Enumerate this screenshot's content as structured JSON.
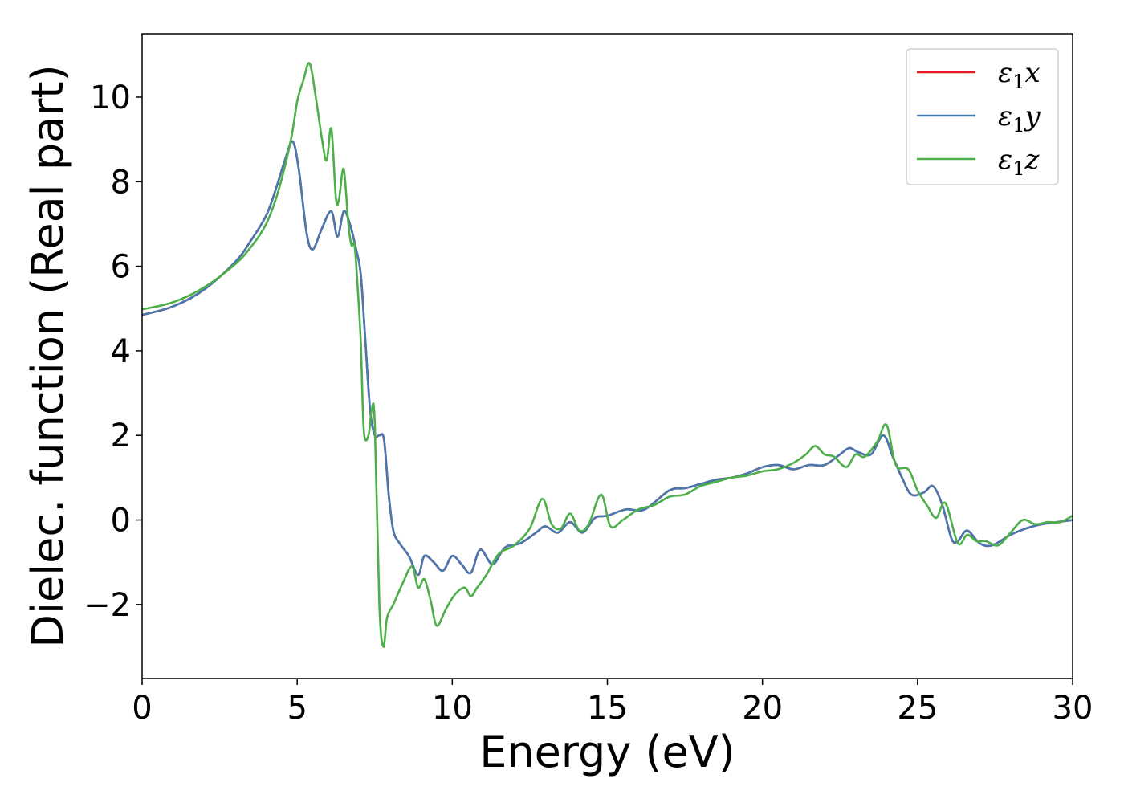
{
  "chart_data": {
    "type": "line",
    "xlabel": "Energy (eV)",
    "ylabel": "Dielec. function (Real part)",
    "xlim": [
      0,
      30
    ],
    "ylim": [
      -3.75,
      11.5
    ],
    "xticks": [
      0,
      5,
      10,
      15,
      20,
      25,
      30
    ],
    "xtick_labels": [
      "0",
      "5",
      "10",
      "15",
      "20",
      "25",
      "30"
    ],
    "yticks": [
      -2,
      0,
      2,
      4,
      6,
      8,
      10
    ],
    "ytick_labels": [
      "−2",
      "0",
      "2",
      "4",
      "6",
      "8",
      "10"
    ],
    "grid": false,
    "legend_position": "top-right",
    "series": [
      {
        "name": "ε1x",
        "legend": {
          "base": "ε",
          "sub": "1",
          "tail": "x"
        },
        "color": "#e41a1c",
        "x": [
          0,
          1,
          2,
          3,
          3.5,
          4,
          4.3,
          4.6,
          4.85,
          5.05,
          5.3,
          5.5,
          5.8,
          6.1,
          6.3,
          6.5,
          6.7,
          6.9,
          7.05,
          7.2,
          7.35,
          7.5,
          7.65,
          7.8,
          7.95,
          8.1,
          8.3,
          8.6,
          8.9,
          9.1,
          9.4,
          9.7,
          10.0,
          10.3,
          10.6,
          10.9,
          11.3,
          11.7,
          12.2,
          12.7,
          13.0,
          13.4,
          13.8,
          14.2,
          14.6,
          15.0,
          15.6,
          16.2,
          17.0,
          17.5,
          18.0,
          18.5,
          19.0,
          19.5,
          20.0,
          20.5,
          21.0,
          21.5,
          22.0,
          22.5,
          22.8,
          23.1,
          23.5,
          23.9,
          24.2,
          24.5,
          24.8,
          25.2,
          25.5,
          25.8,
          26.1,
          26.3,
          26.6,
          27.0,
          27.4,
          28.0,
          28.5,
          29.0,
          29.5,
          30.0
        ],
        "y": [
          4.85,
          5.05,
          5.45,
          6.1,
          6.6,
          7.2,
          7.8,
          8.5,
          8.95,
          8.3,
          6.8,
          6.4,
          6.9,
          7.3,
          6.7,
          7.3,
          7.0,
          6.4,
          5.8,
          4.2,
          2.6,
          2.0,
          2.0,
          1.9,
          0.6,
          -0.25,
          -0.55,
          -0.85,
          -1.3,
          -0.85,
          -1.0,
          -1.2,
          -0.85,
          -1.05,
          -1.25,
          -0.7,
          -1.05,
          -0.65,
          -0.55,
          -0.3,
          -0.15,
          -0.3,
          -0.05,
          -0.3,
          0.05,
          0.1,
          0.25,
          0.25,
          0.7,
          0.75,
          0.85,
          0.95,
          1.0,
          1.1,
          1.25,
          1.3,
          1.2,
          1.3,
          1.3,
          1.55,
          1.7,
          1.6,
          1.55,
          2.0,
          1.5,
          1.0,
          0.6,
          0.65,
          0.8,
          0.35,
          -0.45,
          -0.5,
          -0.25,
          -0.55,
          -0.6,
          -0.35,
          -0.2,
          -0.1,
          -0.05,
          0.0
        ]
      },
      {
        "name": "ε1y",
        "legend": {
          "base": "ε",
          "sub": "1",
          "tail": "y"
        },
        "color": "#4878b0",
        "x": [
          0,
          1,
          2,
          3,
          3.5,
          4,
          4.3,
          4.6,
          4.85,
          5.05,
          5.3,
          5.5,
          5.8,
          6.1,
          6.3,
          6.5,
          6.7,
          6.9,
          7.05,
          7.2,
          7.35,
          7.5,
          7.65,
          7.8,
          7.95,
          8.1,
          8.3,
          8.6,
          8.9,
          9.1,
          9.4,
          9.7,
          10.0,
          10.3,
          10.6,
          10.9,
          11.3,
          11.7,
          12.2,
          12.7,
          13.0,
          13.4,
          13.8,
          14.2,
          14.6,
          15.0,
          15.6,
          16.2,
          17.0,
          17.5,
          18.0,
          18.5,
          19.0,
          19.5,
          20.0,
          20.5,
          21.0,
          21.5,
          22.0,
          22.5,
          22.8,
          23.1,
          23.5,
          23.9,
          24.2,
          24.5,
          24.8,
          25.2,
          25.5,
          25.8,
          26.1,
          26.3,
          26.6,
          27.0,
          27.4,
          28.0,
          28.5,
          29.0,
          29.5,
          30.0
        ],
        "y": [
          4.85,
          5.05,
          5.45,
          6.1,
          6.6,
          7.2,
          7.8,
          8.5,
          8.95,
          8.3,
          6.8,
          6.4,
          6.9,
          7.3,
          6.7,
          7.3,
          7.0,
          6.4,
          5.8,
          4.2,
          2.6,
          2.0,
          2.0,
          1.9,
          0.6,
          -0.25,
          -0.55,
          -0.85,
          -1.3,
          -0.85,
          -1.0,
          -1.2,
          -0.85,
          -1.05,
          -1.25,
          -0.7,
          -1.05,
          -0.65,
          -0.55,
          -0.3,
          -0.15,
          -0.3,
          -0.05,
          -0.3,
          0.05,
          0.1,
          0.25,
          0.25,
          0.7,
          0.75,
          0.85,
          0.95,
          1.0,
          1.1,
          1.25,
          1.3,
          1.2,
          1.3,
          1.3,
          1.55,
          1.7,
          1.6,
          1.55,
          2.0,
          1.5,
          1.0,
          0.6,
          0.65,
          0.8,
          0.35,
          -0.45,
          -0.5,
          -0.25,
          -0.55,
          -0.6,
          -0.35,
          -0.2,
          -0.1,
          -0.05,
          0.0
        ]
      },
      {
        "name": "ε1z",
        "legend": {
          "base": "ε",
          "sub": "1",
          "tail": "z"
        },
        "color": "#4daf4a",
        "x": [
          0,
          1,
          2,
          3,
          3.5,
          4,
          4.4,
          4.8,
          5.0,
          5.2,
          5.4,
          5.6,
          5.8,
          5.95,
          6.1,
          6.25,
          6.35,
          6.5,
          6.65,
          6.75,
          6.85,
          6.95,
          7.05,
          7.15,
          7.3,
          7.4,
          7.5,
          7.65,
          7.78,
          7.9,
          8.1,
          8.4,
          8.7,
          8.9,
          9.1,
          9.3,
          9.5,
          9.8,
          10.1,
          10.4,
          10.6,
          10.8,
          11.1,
          11.5,
          12.0,
          12.5,
          12.9,
          13.2,
          13.5,
          13.8,
          14.1,
          14.4,
          14.8,
          15.1,
          15.5,
          16.0,
          16.5,
          17.0,
          17.5,
          18.0,
          18.5,
          19.0,
          19.5,
          20.0,
          20.5,
          21.0,
          21.4,
          21.7,
          22.0,
          22.3,
          22.7,
          23.0,
          23.3,
          23.7,
          24.0,
          24.3,
          24.7,
          25.0,
          25.3,
          25.6,
          25.9,
          26.3,
          26.6,
          26.9,
          27.2,
          27.6,
          28.0,
          28.4,
          28.8,
          29.2,
          29.6,
          30.0
        ],
        "y": [
          4.98,
          5.15,
          5.5,
          6.05,
          6.45,
          7.0,
          7.8,
          9.0,
          9.9,
          10.4,
          10.8,
          10.0,
          9.0,
          8.5,
          9.25,
          7.6,
          7.6,
          8.3,
          7.0,
          6.5,
          6.5,
          5.5,
          4.2,
          2.1,
          2.0,
          2.6,
          2.3,
          -2.0,
          -3.0,
          -2.3,
          -2.0,
          -1.5,
          -1.1,
          -1.6,
          -1.4,
          -1.9,
          -2.5,
          -2.1,
          -1.75,
          -1.6,
          -1.8,
          -1.6,
          -1.3,
          -0.8,
          -0.6,
          -0.2,
          0.5,
          -0.1,
          -0.2,
          0.15,
          -0.25,
          -0.1,
          0.6,
          -0.15,
          0.0,
          0.25,
          0.35,
          0.55,
          0.6,
          0.8,
          0.9,
          1.0,
          1.05,
          1.15,
          1.2,
          1.35,
          1.55,
          1.75,
          1.55,
          1.5,
          1.25,
          1.55,
          1.5,
          1.85,
          2.25,
          1.3,
          1.2,
          0.7,
          0.35,
          0.05,
          0.4,
          -0.55,
          -0.35,
          -0.5,
          -0.5,
          -0.6,
          -0.3,
          0.0,
          -0.1,
          -0.05,
          -0.05,
          0.1
        ]
      }
    ]
  }
}
